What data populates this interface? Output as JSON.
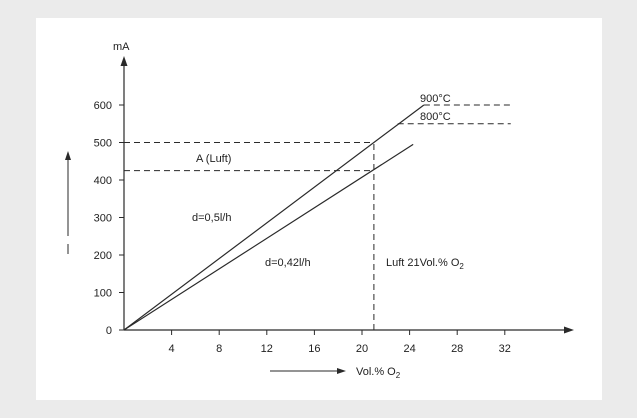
{
  "chart_data": {
    "type": "line",
    "y_unit_label": "mA",
    "y_axis_label": "I",
    "x_axis_label": "Vol.% O",
    "x_axis_label_sub": "2",
    "x_ticks": [
      4,
      8,
      12,
      16,
      20,
      24,
      28,
      32
    ],
    "y_ticks": [
      0,
      100,
      200,
      300,
      400,
      500,
      600
    ],
    "xlim": [
      0,
      35
    ],
    "ylim": [
      0,
      700
    ],
    "series": [
      {
        "name": "900°C",
        "x": [
          0,
          25.2,
          32.5
        ],
        "y": [
          0,
          600,
          600
        ],
        "plateau_dashed": true
      },
      {
        "name": "800°C",
        "x": [
          0,
          24.3,
          32.5
        ],
        "y": [
          0,
          495,
          550
        ],
        "plateau_start": [
          23,
          550
        ],
        "plateau_dashed": true
      }
    ],
    "reference_lines": [
      {
        "type": "horizontal",
        "y": 500,
        "x_to": 21
      },
      {
        "type": "horizontal",
        "y": 425,
        "x_to": 21
      },
      {
        "type": "vertical",
        "x": 21,
        "y_from": 0,
        "y_to": 500
      }
    ],
    "annotations": {
      "label_900": "900°C",
      "label_800": "800°C",
      "a_luft": "A (Luft)",
      "d_05": "d=0,5l/h",
      "d_042": "d=0,42l/h",
      "luft_main": "Luft 21Vol.% O",
      "luft_sub": "2"
    }
  }
}
